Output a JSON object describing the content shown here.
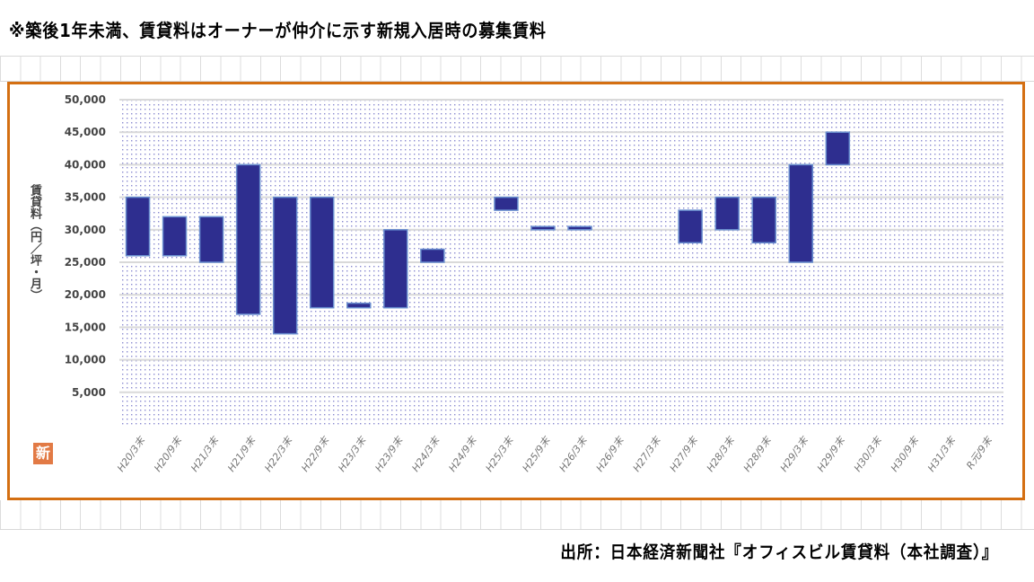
{
  "note": "※築後1年未満、賃貸料はオーナーが仲介に示す新規入居時の募集賃料",
  "source": "出所：日本経済新聞社『オフィスビル賃貸料（本社調査）』",
  "badge": "新",
  "colors": {
    "bar": "#2e2e8f",
    "frame": "#d46f12",
    "badge": "#e27a45"
  },
  "chart_data": {
    "type": "bar",
    "subtype": "floating-range",
    "ylabel": "賃貸料（円／坪・月）",
    "ylim": [
      0,
      50000
    ],
    "yticks": [
      5000,
      10000,
      15000,
      20000,
      25000,
      30000,
      35000,
      40000,
      45000,
      50000
    ],
    "ytick_labels": [
      "5,000",
      "10,000",
      "15,000",
      "20,000",
      "25,000",
      "30,000",
      "35,000",
      "40,000",
      "45,000",
      "50,000"
    ],
    "grid": true,
    "categories": [
      "H20/3末",
      "H20/9末",
      "H21/3末",
      "H21/9末",
      "H22/3末",
      "H22/9末",
      "H23/3末",
      "H23/9末",
      "H24/3末",
      "H24/9末",
      "H25/3末",
      "H25/9末",
      "H26/3末",
      "H26/9末",
      "H27/3末",
      "H27/9末",
      "H28/3末",
      "H28/9末",
      "H29/3末",
      "H29/9末",
      "H30/3末",
      "H30/9末",
      "H31/3末",
      "R元/9末"
    ],
    "low": [
      26000,
      26000,
      25000,
      17000,
      14000,
      18000,
      18000,
      18000,
      25000,
      null,
      33000,
      30000,
      30000,
      null,
      null,
      28000,
      30000,
      28000,
      25000,
      40000,
      null,
      null,
      null,
      null
    ],
    "high": [
      35000,
      32000,
      32000,
      40000,
      35000,
      35000,
      18700,
      30000,
      27000,
      null,
      35000,
      30500,
      30500,
      null,
      null,
      33000,
      35000,
      35000,
      40000,
      45000,
      null,
      null,
      null,
      null
    ]
  }
}
